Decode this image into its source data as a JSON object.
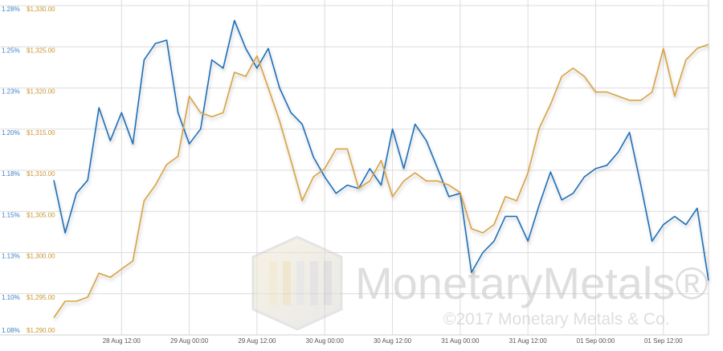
{
  "chart_data": {
    "type": "line",
    "x": [
      0,
      2,
      4,
      6,
      8,
      10,
      12,
      14,
      16,
      18,
      20,
      22,
      24,
      26,
      28,
      30,
      32,
      34,
      36,
      38,
      40,
      42,
      44,
      46,
      48,
      50,
      52,
      54,
      56,
      58,
      60,
      62,
      64,
      66,
      68,
      70,
      72,
      74,
      76,
      78,
      80,
      82,
      84,
      86,
      88,
      90,
      92,
      94,
      96,
      98,
      100,
      102,
      104,
      106,
      108,
      110,
      112,
      114,
      116
    ],
    "xlim": [
      0,
      116
    ],
    "xticks": [
      {
        "value": 12,
        "label": "28 Aug 12:00"
      },
      {
        "value": 24,
        "label": "29 Aug 00:00"
      },
      {
        "value": 36,
        "label": "29 Aug 12:00"
      },
      {
        "value": 48,
        "label": "30 Aug 00:00"
      },
      {
        "value": 60,
        "label": "30 Aug 12:00"
      },
      {
        "value": 72,
        "label": "31 Aug 00:00"
      },
      {
        "value": 84,
        "label": "31 Aug 12:00"
      },
      {
        "value": 96,
        "label": "01 Sep 00:00"
      },
      {
        "value": 108,
        "label": "01 Sep 12:00"
      }
    ],
    "ylim": [
      1.075,
      1.275
    ],
    "yticks": [
      {
        "value": 1.275,
        "label": "1.28%"
      },
      {
        "value": 1.25,
        "label": "1.25%"
      },
      {
        "value": 1.225,
        "label": "1.23%"
      },
      {
        "value": 1.2,
        "label": "1.20%"
      },
      {
        "value": 1.175,
        "label": "1.18%"
      },
      {
        "value": 1.15,
        "label": "1.15%"
      },
      {
        "value": 1.125,
        "label": "1.13%"
      },
      {
        "value": 1.1,
        "label": "1.10%"
      },
      {
        "value": 1.075,
        "label": "1.08%"
      }
    ],
    "y2lim": [
      1290,
      1330
    ],
    "y2ticks": [
      {
        "value": 1330,
        "label": "$1,330.00"
      },
      {
        "value": 1325,
        "label": "$1,325.00"
      },
      {
        "value": 1320,
        "label": "$1,320.00"
      },
      {
        "value": 1315,
        "label": "$1,315.00"
      },
      {
        "value": 1310,
        "label": "$1,310.00"
      },
      {
        "value": 1305,
        "label": "$1,305.00"
      },
      {
        "value": 1300,
        "label": "$1,300.00"
      },
      {
        "value": 1295,
        "label": "$1,295.00"
      },
      {
        "value": 1290,
        "label": "$1,290.00"
      }
    ],
    "grid": true,
    "series": [
      {
        "color": "#1f6fb8",
        "axis": "y",
        "values": [
          1.169,
          1.137,
          1.161,
          1.169,
          1.213,
          1.193,
          1.21,
          1.191,
          1.242,
          1.252,
          1.254,
          1.21,
          1.191,
          1.2,
          1.242,
          1.237,
          1.266,
          1.249,
          1.237,
          1.249,
          1.225,
          1.21,
          1.203,
          1.183,
          1.171,
          1.161,
          1.166,
          1.164,
          1.176,
          1.166,
          1.2,
          1.176,
          1.203,
          1.193,
          1.176,
          1.159,
          1.161,
          1.113,
          1.125,
          1.132,
          1.147,
          1.147,
          1.132,
          1.154,
          1.174,
          1.157,
          1.161,
          1.171,
          1.176,
          1.178,
          1.186,
          1.198,
          1.166,
          1.132,
          1.142,
          1.147,
          1.142,
          1.152,
          1.108
        ]
      },
      {
        "color": "#d9a241",
        "axis": "y2",
        "values": [
          1292.1,
          1294.1,
          1294.1,
          1294.6,
          1297.5,
          1297.0,
          1298.0,
          1299.0,
          1306.3,
          1308.2,
          1310.7,
          1311.7,
          1319.0,
          1317.0,
          1316.5,
          1317.0,
          1321.9,
          1321.4,
          1323.9,
          1320.0,
          1316.0,
          1311.2,
          1306.3,
          1309.2,
          1310.2,
          1312.6,
          1312.6,
          1307.8,
          1308.7,
          1311.2,
          1306.8,
          1308.7,
          1309.7,
          1308.7,
          1308.7,
          1308.2,
          1307.3,
          1302.9,
          1302.4,
          1303.4,
          1306.8,
          1306.3,
          1309.7,
          1315.1,
          1318.0,
          1321.4,
          1322.4,
          1321.4,
          1319.5,
          1319.5,
          1319.0,
          1318.5,
          1318.5,
          1319.5,
          1324.8,
          1319.0,
          1323.4,
          1324.8,
          1325.3
        ]
      }
    ],
    "y_label_color": "#3a7fc4",
    "y2_label_color": "#c8962e",
    "watermark": {
      "text": "MonetaryMetals®",
      "copyright": "©2017 Monetary Metals & Co."
    }
  }
}
